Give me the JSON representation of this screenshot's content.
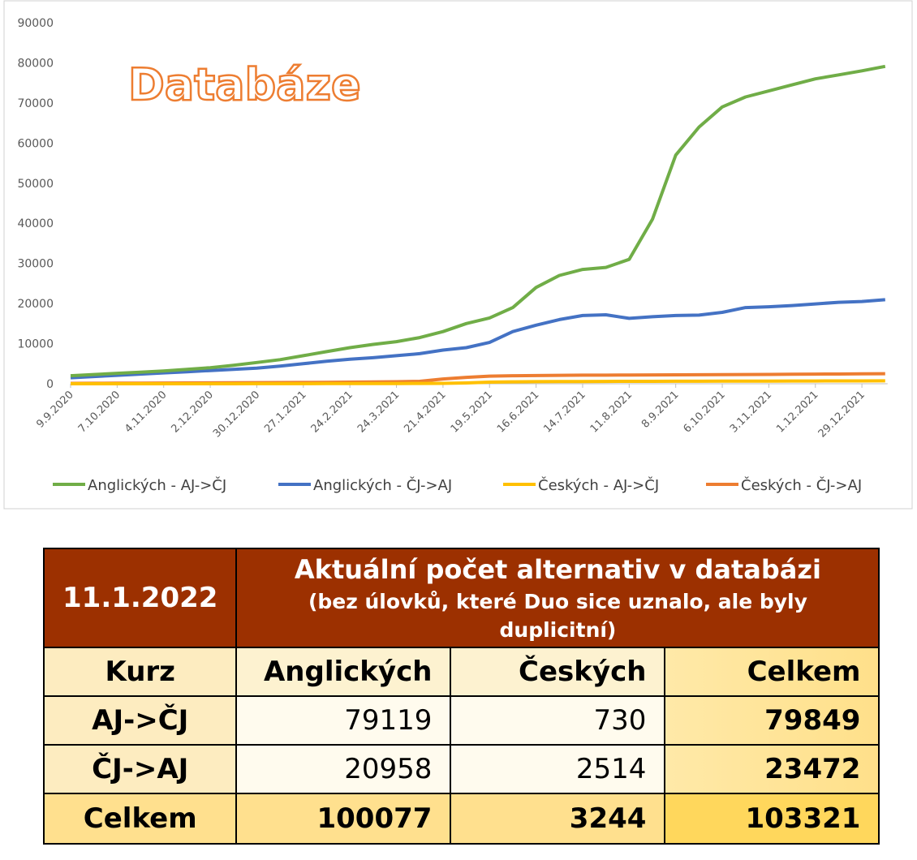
{
  "chart_data": {
    "type": "line",
    "title": "Databáze",
    "categories": [
      "9.9.2020",
      null,
      "7.10.2020",
      null,
      "4.11.2020",
      null,
      "2.12.2020",
      null,
      "30.12.2020",
      null,
      "27.1.2021",
      null,
      "24.2.2021",
      null,
      "24.3.2021",
      null,
      "21.4.2021",
      null,
      "19.5.2021",
      null,
      "16.6.2021",
      null,
      "14.7.2021",
      null,
      "11.8.2021",
      null,
      "8.9.2021",
      null,
      "6.10.2021",
      null,
      "3.11.2021",
      null,
      "1.12.2021",
      null,
      "29.12.2021",
      null
    ],
    "series": [
      {
        "name": "Anglických - AJ->ČJ",
        "color": "#70ad47",
        "values": [
          2000,
          2300,
          2600,
          2900,
          3200,
          3600,
          4000,
          4600,
          5300,
          6000,
          7000,
          8000,
          9000,
          9800,
          10500,
          11500,
          13000,
          15000,
          16400,
          19000,
          24000,
          27000,
          28500,
          29000,
          31000,
          41000,
          57000,
          64000,
          69000,
          71500,
          73000,
          74500,
          76000,
          77000,
          78000,
          79119
        ]
      },
      {
        "name": "Anglických - ČJ->AJ",
        "color": "#4472c4",
        "values": [
          1500,
          1800,
          2100,
          2400,
          2700,
          3000,
          3300,
          3600,
          3900,
          4400,
          5000,
          5600,
          6100,
          6500,
          7000,
          7500,
          8400,
          9000,
          10300,
          13000,
          14600,
          16000,
          17000,
          17200,
          16300,
          16700,
          17000,
          17100,
          17800,
          19000,
          19200,
          19500,
          19900,
          20300,
          20500,
          20958
        ]
      },
      {
        "name": "Českých - AJ->ČJ",
        "color": "#ffc000",
        "values": [
          0,
          0,
          0,
          0,
          0,
          0,
          10,
          10,
          20,
          20,
          30,
          40,
          50,
          60,
          70,
          80,
          100,
          200,
          400,
          480,
          520,
          550,
          570,
          590,
          600,
          610,
          620,
          630,
          640,
          650,
          660,
          680,
          690,
          700,
          710,
          730
        ]
      },
      {
        "name": "Českých - ČJ->AJ",
        "color": "#ed7d31",
        "values": [
          100,
          120,
          140,
          160,
          180,
          200,
          220,
          250,
          280,
          300,
          330,
          360,
          400,
          450,
          500,
          600,
          1200,
          1600,
          1900,
          2000,
          2050,
          2100,
          2150,
          2150,
          2180,
          2200,
          2220,
          2240,
          2260,
          2300,
          2330,
          2360,
          2400,
          2430,
          2470,
          2514
        ]
      }
    ],
    "ylim": [
      0,
      90000
    ],
    "yticks": [
      0,
      10000,
      20000,
      30000,
      40000,
      50000,
      60000,
      70000,
      80000,
      90000
    ],
    "grid": false,
    "legend": "bottom"
  },
  "table": {
    "date": "11.1.2022",
    "title": "Aktuální počet alternativ v databázi",
    "subtitle": "(bez úlovků, které Duo sice uznalo, ale byly duplicitní)",
    "header": [
      "Kurz",
      "Anglických",
      "Českých",
      "Celkem"
    ],
    "rows": [
      [
        "AJ->ČJ",
        79119,
        730,
        79849
      ],
      [
        "ČJ->AJ",
        20958,
        2514,
        23472
      ],
      [
        "Celkem",
        100077,
        3244,
        103321
      ]
    ]
  }
}
